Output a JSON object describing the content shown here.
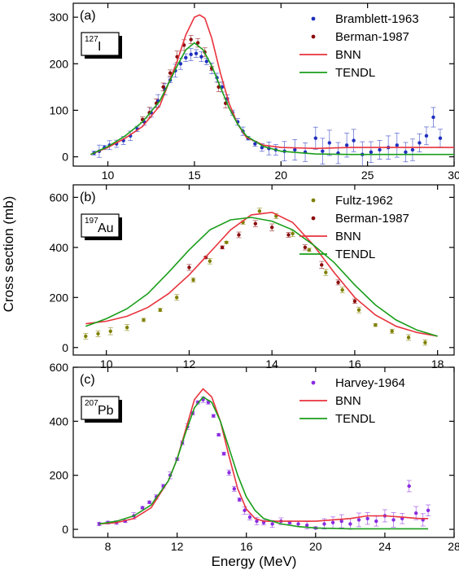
{
  "figure": {
    "ylabel": "Cross section (mb)",
    "xlabel": "Energy (MeV)"
  },
  "chart_data": [
    {
      "type": "line",
      "panel_label": "(a)",
      "nucleus": {
        "mass": "127",
        "symbol": "I"
      },
      "xlim": [
        8,
        30
      ],
      "ylim": [
        -20,
        330
      ],
      "xticks": [
        10,
        15,
        20,
        25,
        30
      ],
      "yticks": [
        0,
        100,
        200,
        300
      ],
      "legend": "top-right",
      "colors": {
        "Bramblett-1963": "#1f2fbf",
        "Berman-1987": "#8b0d0d",
        "BNN": "#e8333d",
        "TENDL": "#1a9e1a"
      },
      "series": [
        {
          "name": "Bramblett-1963",
          "kind": "points",
          "x": [
            9.2,
            9.5,
            9.8,
            10.1,
            10.5,
            10.9,
            11.3,
            11.7,
            12.1,
            12.5,
            12.9,
            13.3,
            13.6,
            13.9,
            14.2,
            14.5,
            14.8,
            15.1,
            15.4,
            15.7,
            16.0,
            16.3,
            16.6,
            16.9,
            17.2,
            17.5,
            17.8,
            18.1,
            18.5,
            18.9,
            19.3,
            19.7,
            20.2,
            20.8,
            21.4,
            22.0,
            22.4,
            22.8,
            23.3,
            23.8,
            24.2,
            24.7,
            25.2,
            25.7,
            26.2,
            26.7,
            27.2,
            27.6,
            28.0,
            28.4,
            28.8,
            29.2
          ],
          "y": [
            8,
            12,
            20,
            25,
            28,
            35,
            45,
            60,
            75,
            95,
            120,
            145,
            165,
            185,
            200,
            213,
            220,
            222,
            215,
            205,
            190,
            170,
            150,
            125,
            95,
            75,
            55,
            40,
            28,
            20,
            18,
            15,
            12,
            15,
            10,
            40,
            12,
            30,
            8,
            25,
            35,
            5,
            10,
            15,
            20,
            25,
            10,
            15,
            30,
            45,
            85,
            40
          ]
        },
        {
          "name": "Berman-1987",
          "kind": "points",
          "x": [
            12.0,
            12.4,
            12.8,
            13.2,
            13.6,
            14.0,
            14.4,
            14.8,
            15.2,
            15.6,
            16.0,
            16.4,
            16.8
          ],
          "y": [
            80,
            95,
            115,
            150,
            180,
            215,
            240,
            252,
            245,
            225,
            190,
            150,
            115
          ]
        },
        {
          "name": "BNN",
          "kind": "line",
          "x": [
            9,
            10,
            11,
            12,
            13,
            14,
            14.5,
            15,
            15.3,
            15.6,
            16,
            16.5,
            17,
            17.5,
            18,
            19,
            20,
            22,
            24,
            26,
            28,
            30
          ],
          "y": [
            5,
            20,
            40,
            65,
            110,
            205,
            262,
            300,
            305,
            298,
            255,
            180,
            115,
            70,
            42,
            25,
            20,
            18,
            20,
            20,
            20,
            20
          ]
        },
        {
          "name": "TENDL",
          "kind": "line",
          "x": [
            9,
            10,
            11,
            12,
            13,
            14,
            14.5,
            15,
            15.5,
            16,
            16.5,
            17,
            17.5,
            18,
            19,
            20,
            22,
            24,
            26,
            28,
            30
          ],
          "y": [
            5,
            22,
            45,
            75,
            120,
            195,
            230,
            245,
            230,
            195,
            150,
            105,
            70,
            45,
            22,
            12,
            6,
            5,
            5,
            5,
            5
          ]
        }
      ]
    },
    {
      "type": "line",
      "panel_label": "(b)",
      "nucleus": {
        "mass": "197",
        "symbol": "Au"
      },
      "xlim": [
        9.2,
        18.4
      ],
      "ylim": [
        -30,
        650
      ],
      "xticks": [
        10,
        12,
        14,
        16,
        18
      ],
      "yticks": [
        0,
        200,
        400,
        600
      ],
      "legend": "top-right",
      "colors": {
        "Fultz-1962": "#808000",
        "Berman-1987": "#8b0d0d",
        "BNN": "#e8333d",
        "TENDL": "#1a9e1a"
      },
      "series": [
        {
          "name": "Fultz-1962",
          "kind": "points",
          "x": [
            9.5,
            9.8,
            10.1,
            10.5,
            10.9,
            11.3,
            11.7,
            12.1,
            12.5,
            12.9,
            13.3,
            13.7,
            14.1,
            14.5,
            14.9,
            15.3,
            15.7,
            16.1,
            16.5,
            16.9,
            17.3,
            17.7
          ],
          "y": [
            45,
            55,
            65,
            80,
            110,
            150,
            200,
            270,
            345,
            420,
            500,
            545,
            525,
            455,
            390,
            300,
            230,
            150,
            90,
            65,
            40,
            20
          ]
        },
        {
          "name": "Berman-1987",
          "kind": "points",
          "x": [
            12.0,
            12.4,
            12.8,
            13.2,
            13.6,
            14.0,
            14.4,
            14.8,
            15.2,
            15.6,
            16.0
          ],
          "y": [
            320,
            360,
            400,
            450,
            495,
            480,
            450,
            400,
            330,
            260,
            185
          ]
        },
        {
          "name": "BNN",
          "kind": "line",
          "x": [
            9.5,
            10,
            10.5,
            11,
            11.5,
            12,
            12.5,
            13,
            13.5,
            14,
            14.5,
            15,
            15.5,
            16,
            16.5,
            17,
            17.5,
            18
          ],
          "y": [
            95,
            105,
            125,
            160,
            215,
            290,
            380,
            470,
            530,
            540,
            500,
            410,
            300,
            200,
            130,
            85,
            60,
            45
          ]
        },
        {
          "name": "TENDL",
          "kind": "line",
          "x": [
            9.5,
            10,
            10.5,
            11,
            11.5,
            12,
            12.5,
            13,
            13.5,
            14,
            14.5,
            15,
            15.5,
            16,
            16.5,
            17,
            17.5,
            18
          ],
          "y": [
            85,
            115,
            155,
            215,
            300,
            390,
            470,
            510,
            520,
            505,
            470,
            410,
            340,
            250,
            170,
            110,
            70,
            45
          ]
        }
      ]
    },
    {
      "type": "line",
      "panel_label": "(c)",
      "nucleus": {
        "mass": "207",
        "symbol": "Pb"
      },
      "xlim": [
        6,
        28
      ],
      "ylim": [
        -30,
        600
      ],
      "xticks": [
        8,
        12,
        16,
        20,
        24,
        28
      ],
      "yticks": [
        0,
        200,
        400,
        600
      ],
      "legend": "top-right",
      "colors": {
        "Harvey-1964": "#8a2be2",
        "BNN": "#e8333d",
        "TENDL": "#1a9e1a"
      },
      "series": [
        {
          "name": "Harvey-1964",
          "kind": "points",
          "x": [
            7.5,
            8.0,
            8.5,
            9.0,
            9.5,
            10.0,
            10.4,
            10.8,
            11.2,
            11.6,
            12.0,
            12.3,
            12.6,
            12.9,
            13.2,
            13.5,
            13.8,
            14.1,
            14.4,
            14.7,
            15.0,
            15.3,
            15.6,
            15.9,
            16.2,
            16.6,
            17.0,
            17.5,
            18.0,
            18.5,
            19.0,
            19.5,
            20.0,
            20.5,
            21.0,
            21.5,
            22.0,
            22.5,
            23.0,
            23.5,
            24.0,
            24.5,
            25.0,
            25.4,
            25.8,
            26.2,
            26.5
          ],
          "y": [
            20,
            25,
            25,
            30,
            50,
            80,
            100,
            120,
            160,
            200,
            260,
            320,
            380,
            430,
            470,
            480,
            470,
            420,
            350,
            280,
            210,
            150,
            110,
            70,
            45,
            30,
            25,
            20,
            30,
            25,
            20,
            15,
            5,
            20,
            25,
            30,
            20,
            35,
            40,
            30,
            50,
            35,
            40,
            160,
            60,
            35,
            70
          ]
        },
        {
          "name": "BNN",
          "kind": "line",
          "x": [
            7.5,
            8.5,
            9.5,
            10.5,
            11.5,
            12.0,
            12.5,
            13.0,
            13.5,
            14.0,
            14.5,
            15.0,
            15.5,
            16.0,
            16.5,
            17.0,
            18,
            19,
            20,
            21,
            22,
            23,
            24,
            25,
            26,
            26.5
          ],
          "y": [
            20,
            25,
            40,
            80,
            180,
            260,
            370,
            480,
            520,
            490,
            400,
            270,
            150,
            75,
            40,
            30,
            30,
            30,
            30,
            35,
            40,
            50,
            50,
            45,
            40,
            40
          ]
        },
        {
          "name": "TENDL",
          "kind": "line",
          "x": [
            7.5,
            8.5,
            9.5,
            10.5,
            11.5,
            12.0,
            12.5,
            13.0,
            13.5,
            14.0,
            14.5,
            15.0,
            15.5,
            16.0,
            16.5,
            17.0,
            18,
            19,
            20,
            22,
            24,
            26,
            26.5
          ],
          "y": [
            20,
            30,
            50,
            90,
            180,
            260,
            360,
            450,
            490,
            470,
            400,
            300,
            200,
            120,
            70,
            40,
            20,
            10,
            5,
            2,
            2,
            2,
            2
          ]
        }
      ]
    }
  ]
}
